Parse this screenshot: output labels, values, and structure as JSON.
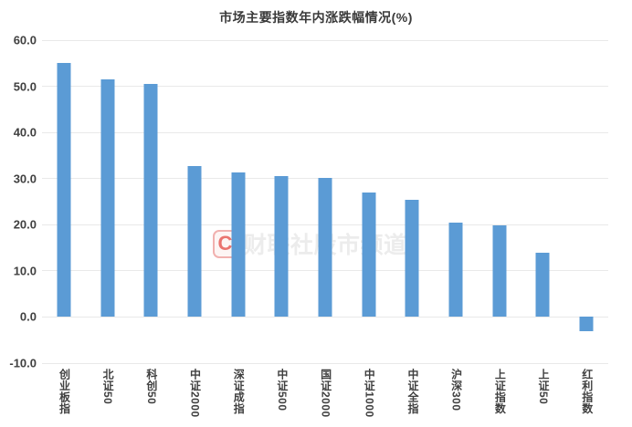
{
  "chart_data": {
    "type": "bar",
    "title": "市场主要指数年内涨跌幅情况(%)",
    "categories": [
      "创业板指",
      "北证50",
      "科创50",
      "中证2000",
      "深证成指",
      "中证500",
      "国证2000",
      "中证1000",
      "中证全指",
      "沪深300",
      "上证指数",
      "上证50",
      "红利指数"
    ],
    "values": [
      55.1,
      51.5,
      50.5,
      32.8,
      31.4,
      30.6,
      30.2,
      26.9,
      25.4,
      20.5,
      19.8,
      14.0,
      -3.1
    ],
    "xlabel": "",
    "ylabel": "",
    "ylim": [
      -10,
      60
    ],
    "ytick_labels": [
      "60.0",
      "50.0",
      "40.0",
      "30.0",
      "20.0",
      "10.0",
      "0.0",
      "-10.0"
    ],
    "grid": true,
    "legend": false
  },
  "watermark": {
    "logo_letter": "C",
    "text": "财联社股市频道"
  },
  "colors": {
    "bar": "#5B9BD5",
    "gridline": "#e9e9e9",
    "title_text": "#3a3a3a",
    "axis_text": "#404040",
    "watermark_text": "#ececec",
    "watermark_logo": "#e2423c",
    "background": "#ffffff"
  }
}
